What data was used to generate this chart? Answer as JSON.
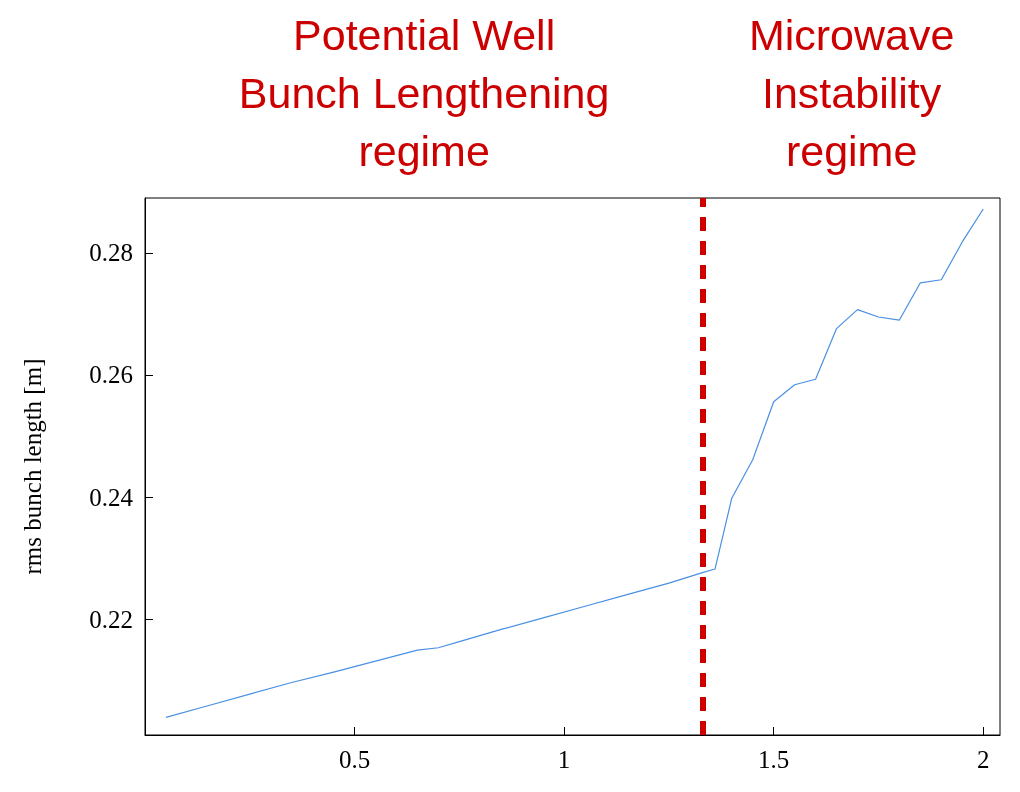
{
  "chart_data": {
    "type": "line",
    "ylabel": "rms bunch length [m]",
    "annotations": [
      "Potential Well\nBunch Lengthening\nregime",
      "Microwave\nInstability\nregime"
    ],
    "x": [
      0.05,
      0.15,
      0.25,
      0.35,
      0.45,
      0.55,
      0.65,
      0.7,
      0.75,
      0.85,
      0.95,
      1.05,
      1.15,
      1.25,
      1.33,
      1.36,
      1.4,
      1.45,
      1.5,
      1.55,
      1.6,
      1.65,
      1.7,
      1.75,
      1.8,
      1.85,
      1.9,
      1.95,
      2.0
    ],
    "series": [
      {
        "color": "#4a90e2",
        "values": [
          0.2039,
          0.2058,
          0.2077,
          0.2096,
          0.2113,
          0.2131,
          0.2149,
          0.2153,
          0.2163,
          0.2183,
          0.2202,
          0.2221,
          0.224,
          0.2259,
          0.2276,
          0.2282,
          0.2398,
          0.2461,
          0.2556,
          0.2584,
          0.2593,
          0.2676,
          0.2707,
          0.2695,
          0.269,
          0.2751,
          0.2756,
          0.2818,
          0.2872
        ]
      }
    ],
    "xlim": [
      0,
      2.04
    ],
    "ylim": [
      0.201,
      0.289
    ],
    "xticks": [
      0.5,
      1,
      1.5,
      2
    ],
    "yticks": [
      0.22,
      0.24,
      0.26,
      0.28
    ],
    "grid": false,
    "marker": "none",
    "line_style": "solid",
    "ref_lines": [
      {
        "axis": "x",
        "value": 1.332,
        "color": "#cc0000",
        "line_style": "dashed"
      }
    ]
  }
}
